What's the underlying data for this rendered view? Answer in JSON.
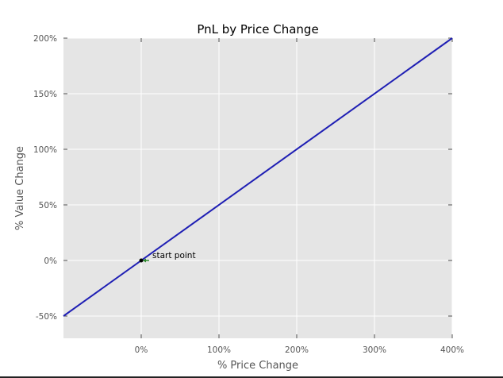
{
  "chart_data": {
    "type": "line",
    "title": "PnL by Price Change",
    "xlabel": "% Price Change",
    "ylabel": "% Value Change",
    "xlim": [
      -100,
      400
    ],
    "ylim": [
      -70,
      200
    ],
    "x_ticks": [
      0,
      100,
      200,
      300,
      400
    ],
    "x_tick_labels": [
      "0%",
      "100%",
      "200%",
      "300%",
      "400%"
    ],
    "y_ticks": [
      -50,
      0,
      50,
      100,
      150,
      200
    ],
    "y_tick_labels": [
      "-50%",
      "0%",
      "50%",
      "100%",
      "150%",
      "200%"
    ],
    "grid": true,
    "series": [
      {
        "x": [
          -100,
          400
        ],
        "y": [
          -50,
          200
        ]
      }
    ],
    "annotation": {
      "text": "start point",
      "x": 0,
      "y": 0
    },
    "colors": {
      "line": "#1f1fb4",
      "plot_background": "#e5e5e5",
      "grid": "#ffffff",
      "annotation_arrow": "#2e8b2e",
      "marker": "#000000"
    }
  }
}
